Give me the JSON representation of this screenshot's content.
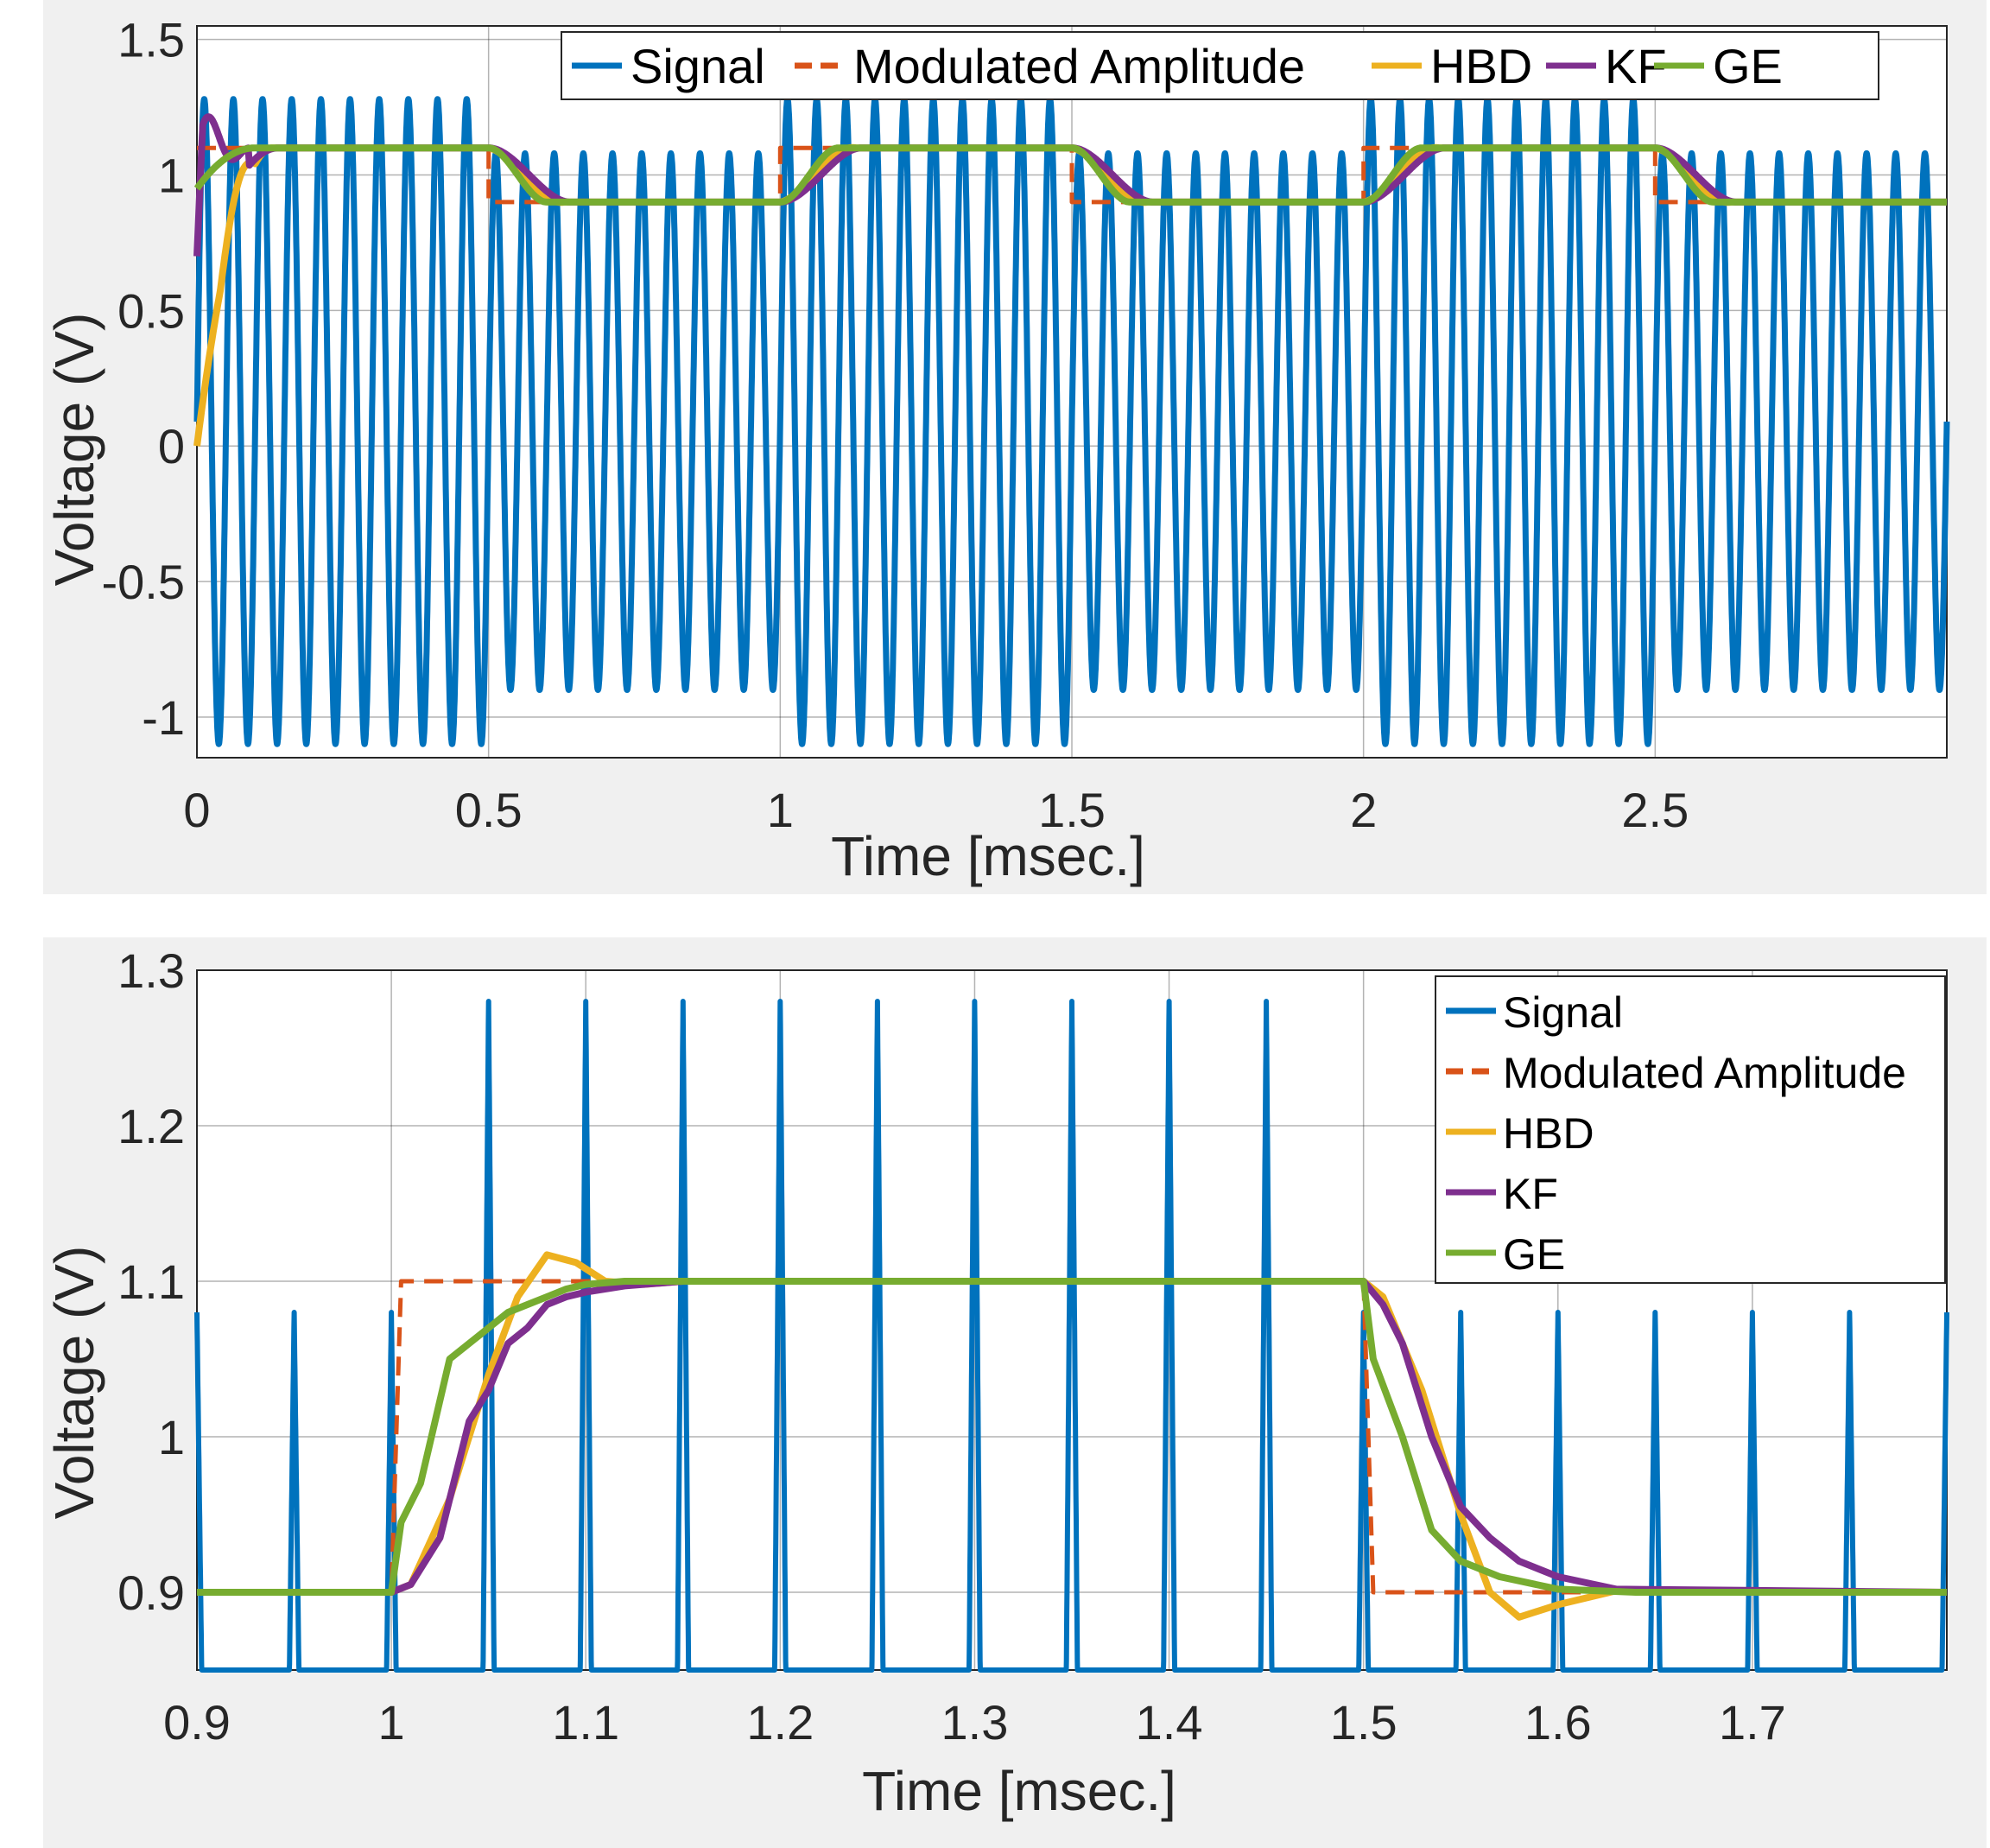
{
  "chart_data": [
    {
      "type": "line",
      "xlabel": "Time [msec.]",
      "ylabel": "Voltage (V)",
      "xlim": [
        0,
        3
      ],
      "ylim": [
        -1.15,
        1.55
      ],
      "xticks": [
        0,
        0.5,
        1,
        1.5,
        2,
        2.5
      ],
      "xtick_labels": [
        "0",
        "0.5",
        "1",
        "1.5",
        "2",
        "2.5"
      ],
      "yticks": [
        -1,
        -0.5,
        0,
        0.5,
        1,
        1.5
      ],
      "ytick_labels": [
        "-1",
        "-0.5",
        "0",
        "0.5",
        "1",
        "1.5"
      ],
      "grid": true,
      "legend_placement": "top, horizontal",
      "legend": [
        "Signal",
        "Modulated Amplitude",
        "HBD",
        "KF",
        "GE"
      ],
      "series": [
        {
          "name": "Signal",
          "color": "#0072BD",
          "style": "solid",
          "description_values": {
            "carrier_period_ms": 0.05,
            "dc_offset": 0.09,
            "amplitude_segments": [
              {
                "x": [
                  0,
                  0.5
                ],
                "amp": 1.19
              },
              {
                "x": [
                  0.5,
                  1
                ],
                "amp": 0.99
              },
              {
                "x": [
                  1,
                  1.5
                ],
                "amp": 1.19
              },
              {
                "x": [
                  1.5,
                  2
                ],
                "amp": 0.99
              },
              {
                "x": [
                  2,
                  2.5
                ],
                "amp": 1.19
              },
              {
                "x": [
                  2.5,
                  3
                ],
                "amp": 0.99
              }
            ]
          }
        },
        {
          "name": "Modulated Amplitude",
          "color": "#D95319",
          "style": "dashed",
          "x": [
            0,
            0.5,
            0.5,
            1,
            1,
            1.5,
            1.5,
            2,
            2,
            2.5,
            2.5,
            3
          ],
          "y": [
            1.1,
            1.1,
            0.9,
            0.9,
            1.1,
            1.1,
            0.9,
            0.9,
            1.1,
            1.1,
            0.9,
            0.9
          ]
        },
        {
          "name": "HBD",
          "color": "#EDB120",
          "style": "solid",
          "transition_ms": 0.13,
          "overshoot": 0.017,
          "start_y": 0
        },
        {
          "name": "KF",
          "color": "#7E2F8E",
          "style": "solid",
          "transition_ms": 0.14,
          "start_y": 0.6
        },
        {
          "name": "GE",
          "color": "#77AC30",
          "style": "solid",
          "transition_ms": 0.1,
          "start_y": 0.95
        }
      ]
    },
    {
      "type": "line",
      "xlabel": "Time [msec.]",
      "ylabel": "Voltage (V)",
      "xlim": [
        0.9,
        1.8
      ],
      "ylim": [
        0.85,
        1.3
      ],
      "xticks": [
        0.9,
        1,
        1.1,
        1.2,
        1.3,
        1.4,
        1.5,
        1.6,
        1.7
      ],
      "xtick_labels": [
        "0.9",
        "1",
        "1.1",
        "1.2",
        "1.3",
        "1.4",
        "1.5",
        "1.6",
        "1.7"
      ],
      "yticks": [
        0.9,
        1,
        1.1,
        1.2,
        1.3
      ],
      "ytick_labels": [
        "0.9",
        "1",
        "1.1",
        "1.2",
        "1.3"
      ],
      "grid": true,
      "legend_placement": "top-right, vertical",
      "legend": [
        "Signal",
        "Modulated Amplitude",
        "HBD",
        "KF",
        "GE"
      ],
      "series": [
        {
          "name": "Signal",
          "color": "#0072BD",
          "style": "solid",
          "peak_times_ms": [
            0.9,
            0.95,
            1.0,
            1.05,
            1.1,
            1.15,
            1.2,
            1.25,
            1.3,
            1.35,
            1.4,
            1.45,
            1.5,
            1.55,
            1.6,
            1.65,
            1.7,
            1.75,
            1.8
          ]
        },
        {
          "name": "Modulated Amplitude",
          "color": "#D95319",
          "style": "dashed",
          "x": [
            0.9,
            1.0,
            1.005,
            1.5,
            1.505,
            1.8
          ],
          "y": [
            0.9,
            0.9,
            1.1,
            1.1,
            0.9,
            0.9
          ]
        },
        {
          "name": "HBD",
          "color": "#EDB120",
          "style": "solid",
          "x": [
            0.9,
            1.0,
            1.01,
            1.03,
            1.05,
            1.065,
            1.08,
            1.095,
            1.11,
            1.13,
            1.15,
            1.5,
            1.51,
            1.53,
            1.55,
            1.565,
            1.58,
            1.6,
            1.63,
            1.8
          ],
          "y": [
            0.9,
            0.9,
            0.905,
            0.96,
            1.04,
            1.09,
            1.117,
            1.112,
            1.1,
            1.098,
            1.1,
            1.1,
            1.09,
            1.03,
            0.95,
            0.9,
            0.884,
            0.892,
            0.901,
            0.9
          ]
        },
        {
          "name": "KF",
          "color": "#7E2F8E",
          "style": "solid",
          "x": [
            0.9,
            1.0,
            1.01,
            1.025,
            1.04,
            1.05,
            1.06,
            1.07,
            1.08,
            1.09,
            1.1,
            1.12,
            1.15,
            1.5,
            1.51,
            1.52,
            1.535,
            1.55,
            1.565,
            1.58,
            1.6,
            1.63,
            1.8
          ],
          "y": [
            0.9,
            0.9,
            0.905,
            0.935,
            1.01,
            1.03,
            1.06,
            1.07,
            1.085,
            1.09,
            1.093,
            1.097,
            1.1,
            1.1,
            1.085,
            1.06,
            1.0,
            0.955,
            0.935,
            0.92,
            0.91,
            0.902,
            0.9
          ]
        },
        {
          "name": "GE",
          "color": "#77AC30",
          "style": "solid",
          "x": [
            0.9,
            1.0,
            1.005,
            1.015,
            1.03,
            1.05,
            1.06,
            1.07,
            1.09,
            1.1,
            1.12,
            1.15,
            1.5,
            1.505,
            1.52,
            1.535,
            1.55,
            1.57,
            1.6,
            1.64,
            1.8
          ],
          "y": [
            0.9,
            0.9,
            0.945,
            0.97,
            1.05,
            1.07,
            1.08,
            1.085,
            1.095,
            1.098,
            1.1,
            1.1,
            1.1,
            1.05,
            1.0,
            0.94,
            0.92,
            0.91,
            0.902,
            0.9,
            0.9
          ]
        }
      ]
    }
  ]
}
